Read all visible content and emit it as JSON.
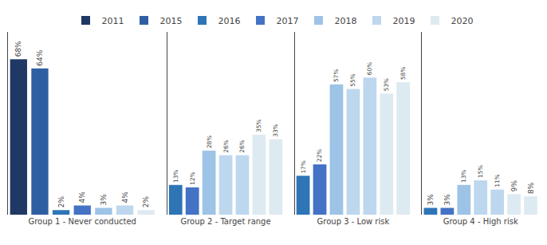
{
  "chart_data": [
    {
      "type": "bar",
      "xlabel": "Group 1 - Never conducted",
      "categories": [
        null,
        null,
        null,
        null,
        null,
        null,
        null
      ],
      "values": [
        68,
        64,
        2,
        4,
        3,
        4,
        2
      ],
      "value_labels": [
        "68%",
        "64%",
        "2%",
        "4%",
        "3%",
        "4%",
        "2%"
      ],
      "colors": [
        "#1f3864",
        "#2e5fa3",
        "#2e75b6",
        "#4472c4",
        "#9dc3e6",
        "#bdd7ee",
        "#deeaf1"
      ],
      "ylim": [
        0,
        80
      ],
      "data_labels": true,
      "tick_labels": false,
      "grid": false
    },
    {
      "type": "bar",
      "xlabel": "Group 2 - Target range",
      "categories": [
        null,
        null,
        null,
        null,
        null,
        null,
        null
      ],
      "values": [
        13,
        12,
        28,
        26,
        26,
        35,
        33
      ],
      "value_labels": [
        "13%",
        "12%",
        "28%",
        "26%",
        "26%",
        "35%",
        "33%"
      ],
      "colors": [
        "#2e75b6",
        "#4472c4",
        "#9dc3e6",
        "#bdd7ee",
        "#bdd7ee",
        "#deeaf1",
        "#deeaf1"
      ],
      "ylim": [
        0,
        80
      ],
      "data_labels": true,
      "tick_labels": false,
      "grid": false
    },
    {
      "type": "bar",
      "xlabel": "Group 3 - Low risk",
      "categories": [
        null,
        null,
        null,
        null,
        null,
        null,
        null
      ],
      "values": [
        17,
        22,
        57,
        55,
        60,
        53,
        58
      ],
      "value_labels": [
        "17%",
        "22%",
        "57%",
        "55%",
        "60%",
        "53%",
        "58%"
      ],
      "colors": [
        "#2e75b6",
        "#4472c4",
        "#9dc3e6",
        "#bdd7ee",
        "#bdd7ee",
        "#deeaf1",
        "#deeaf1"
      ],
      "ylim": [
        0,
        80
      ],
      "data_labels": true,
      "tick_labels": false,
      "grid": false
    },
    {
      "type": "bar",
      "xlabel": "Group 4 - High risk",
      "categories": [
        null,
        null,
        null,
        null,
        null,
        null,
        null
      ],
      "values": [
        3,
        3,
        13,
        15,
        11,
        9,
        8
      ],
      "value_labels": [
        "3%",
        "3%",
        "13%",
        "15%",
        "11%",
        "9%",
        "8%"
      ],
      "colors": [
        "#2e75b6",
        "#4472c4",
        "#9dc3e6",
        "#bdd7ee",
        "#bdd7ee",
        "#deeaf1",
        "#deeaf1"
      ],
      "ylim": [
        0,
        80
      ],
      "data_labels": true,
      "tick_labels": false,
      "grid": false
    }
  ],
  "legend": {
    "position": "top",
    "series": [
      {
        "name": "2011",
        "color": "#1f3864"
      },
      {
        "name": "2015",
        "color": "#2e5fa3"
      },
      {
        "name": "2016",
        "color": "#2e75b6"
      },
      {
        "name": "2017",
        "color": "#4472c4"
      },
      {
        "name": "2018",
        "color": "#9dc3e6"
      },
      {
        "name": "2019",
        "color": "#bdd7ee"
      },
      {
        "name": "2020",
        "color": "#deeaf1"
      }
    ]
  }
}
